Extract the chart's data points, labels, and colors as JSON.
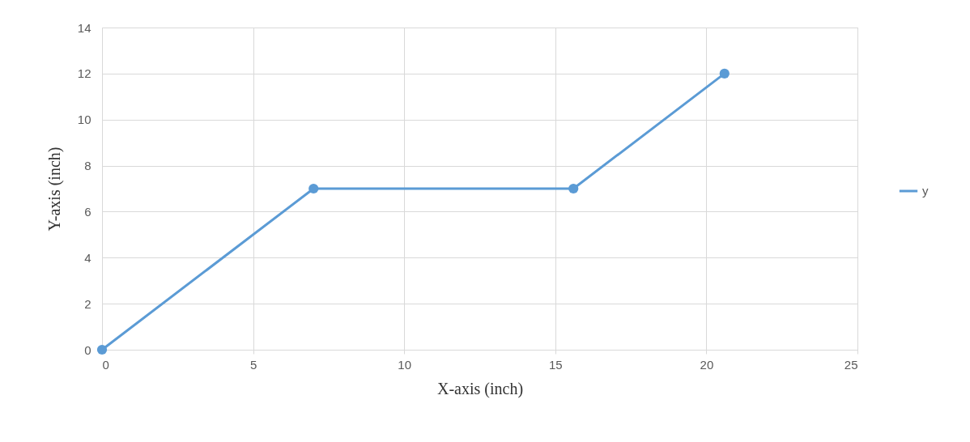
{
  "chart_data": {
    "type": "line",
    "xlabel": "X-axis (inch)",
    "ylabel": "Y-axis (inch)",
    "x": [
      0,
      7,
      15.6,
      20.6
    ],
    "series": [
      {
        "name": "y",
        "color": "#5b9bd5",
        "values": [
          0,
          7,
          7,
          12
        ]
      }
    ],
    "xlim": [
      0,
      25
    ],
    "xticks": [
      0,
      5,
      10,
      15,
      20,
      25
    ],
    "ylim": [
      0,
      14
    ],
    "yticks": [
      0,
      2,
      4,
      6,
      8,
      10,
      12,
      14
    ],
    "grid": true,
    "legend": "right",
    "marker": "circle",
    "line_style": "solid"
  }
}
